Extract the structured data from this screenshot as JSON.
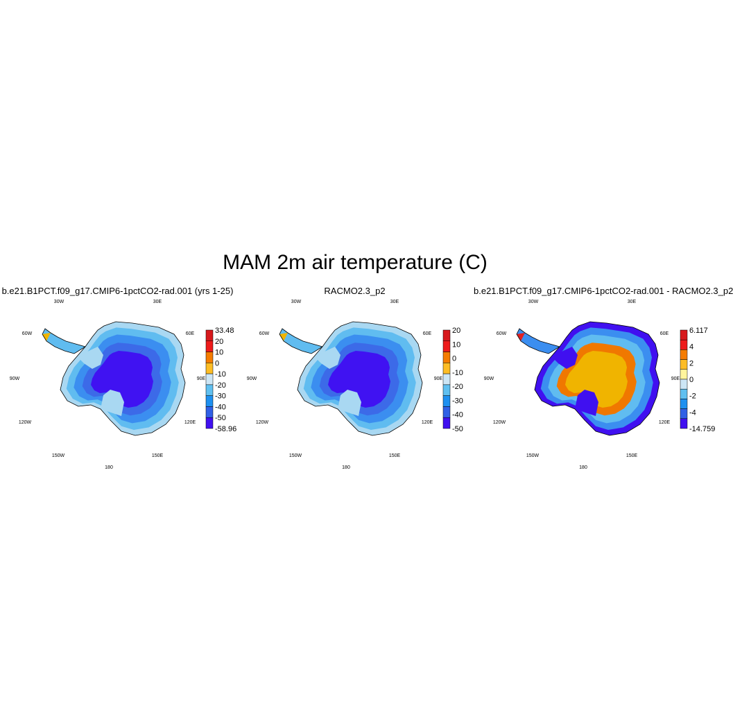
{
  "main_title": "MAM 2m air temperature (C)",
  "lon_labels": [
    "30W",
    "30E",
    "60W",
    "60E",
    "90W",
    "90E",
    "120W",
    "120E",
    "150W",
    "150E",
    "180"
  ],
  "panels": [
    {
      "title": "b.e21.B1PCT.f09_g17.CMIP6-1pctCO2-rad.001 (yrs 1-25)",
      "colorbar": {
        "labels": [
          "33.48",
          "20",
          "10",
          "0",
          "-10",
          "-20",
          "-30",
          "-40",
          "-50",
          "-58.96"
        ],
        "colors": [
          "#d7191c",
          "#ee1b1b",
          "#f57c00",
          "#fdbd25",
          "#cde6f5",
          "#60c0f0",
          "#1e90f0",
          "#3060e6",
          "#4010f0"
        ]
      },
      "map": {
        "ring_colors": [
          "#a9d8f2",
          "#60bcf0",
          "#3b8ef0",
          "#3c6ae8",
          "#4012f2"
        ],
        "coastal_warm": "#f0b400"
      }
    },
    {
      "title": "RACMO2.3_p2",
      "colorbar": {
        "labels": [
          "20",
          "10",
          "0",
          "-10",
          "-20",
          "-30",
          "-40",
          "-50"
        ],
        "colors": [
          "#d7191c",
          "#ee1b1b",
          "#f57c00",
          "#fdbd25",
          "#cde6f5",
          "#60c0f0",
          "#1e90f0",
          "#3060e6",
          "#4010f0"
        ]
      },
      "map": {
        "ring_colors": [
          "#a9d8f2",
          "#60bcf0",
          "#3b8ef0",
          "#3c6ae8",
          "#4012f2"
        ],
        "coastal_warm": "#f0b400"
      }
    },
    {
      "title": "b.e21.B1PCT.f09_g17.CMIP6-1pctCO2-rad.001 - RACMO2.3_p2",
      "colorbar": {
        "labels": [
          "6.117",
          "4",
          "2",
          "0",
          "-2",
          "-4",
          "-14.759"
        ],
        "colors": [
          "#d7191c",
          "#ee1b1b",
          "#f57c00",
          "#fdbd25",
          "#fff59d",
          "#cde6f5",
          "#60c0f0",
          "#1e90f0",
          "#3060e6",
          "#4010f0"
        ]
      },
      "map": {
        "ring_colors": [
          "#4010f0",
          "#3b8ef0",
          "#60bcf0",
          "#f07800",
          "#f0b400"
        ],
        "coastal_warm": "#e02020"
      }
    }
  ]
}
